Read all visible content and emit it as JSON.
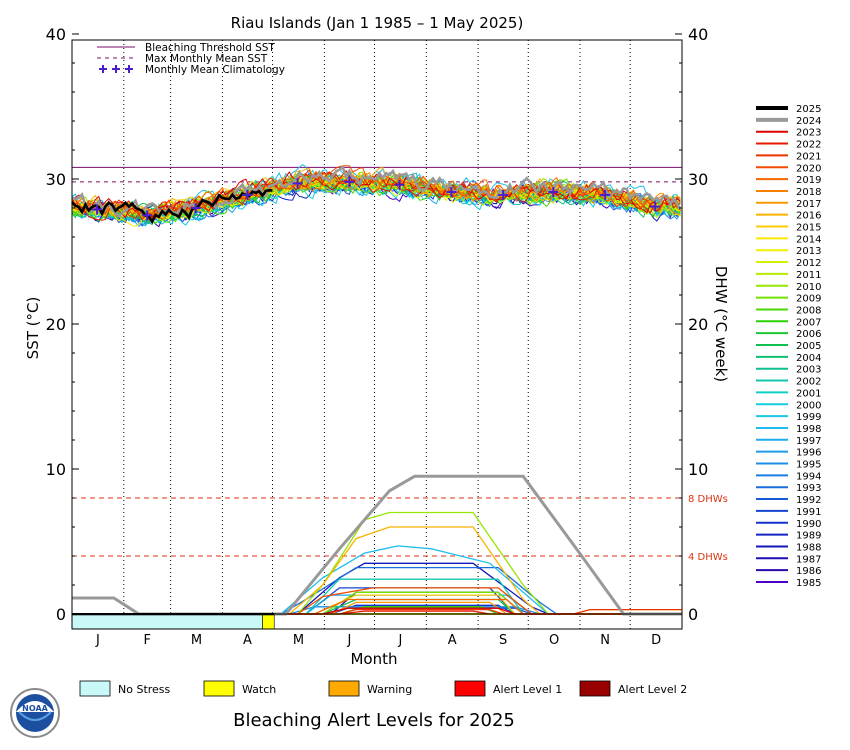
{
  "chart_data": {
    "type": "line",
    "title": "Riau Islands     (Jan 1 1985 – 1 May 2025)",
    "ylabel_left": "SST (°C)",
    "ylabel_right": "DHW (°C week)",
    "xlabel": "Month",
    "ylim": [
      -1,
      40
    ],
    "yticks_left": [
      "0",
      "10",
      "20",
      "30",
      "40"
    ],
    "yticks_right": [
      "0",
      "10",
      "20",
      "30",
      "40"
    ],
    "months": [
      "J",
      "F",
      "M",
      "A",
      "M",
      "J",
      "J",
      "A",
      "S",
      "O",
      "N",
      "D"
    ],
    "bleaching_threshold_sst": 30.8,
    "max_monthly_mean_sst": 29.8,
    "monthly_mean_climatology": [
      27.9,
      27.5,
      28.0,
      28.9,
      29.7,
      29.8,
      29.6,
      29.1,
      28.9,
      29.1,
      28.9,
      28.1
    ],
    "dhw_reference_lines": [
      {
        "value": 8,
        "label": "8 DHWs",
        "color": "#dd3311"
      },
      {
        "value": 4,
        "label": "4 DHWs",
        "color": "#dd3311"
      }
    ],
    "legend_top": [
      {
        "label": "Bleaching Threshold SST",
        "color": "#7a0d6e",
        "style": "solid"
      },
      {
        "label": "Max Monthly Mean SST",
        "color": "#7a0d6e",
        "style": "dashed"
      },
      {
        "label": "Monthly Mean Climatology",
        "color": "#4b1ecc",
        "style": "plus"
      }
    ],
    "years": [
      "2025",
      "2024",
      "2023",
      "2022",
      "2021",
      "2020",
      "2019",
      "2018",
      "2017",
      "2016",
      "2015",
      "2014",
      "2013",
      "2012",
      "2011",
      "2010",
      "2009",
      "2008",
      "2007",
      "2006",
      "2005",
      "2004",
      "2003",
      "2002",
      "2001",
      "2000",
      "1999",
      "1998",
      "1997",
      "1996",
      "1995",
      "1994",
      "1993",
      "1992",
      "1991",
      "1990",
      "1989",
      "1988",
      "1987",
      "1986",
      "1985"
    ],
    "year_colors": [
      "#000000",
      "#999999",
      "#dd0000",
      "#e61a00",
      "#ee3300",
      "#f24c00",
      "#f56600",
      "#f78000",
      "#f99900",
      "#fab300",
      "#fccc00",
      "#fde600",
      "#f0f000",
      "#d2f000",
      "#b4ec00",
      "#96e600",
      "#73e000",
      "#4bd800",
      "#28d000",
      "#1ac830",
      "#12c050",
      "#10c070",
      "#10c090",
      "#10c8ae",
      "#10d0c8",
      "#14d0dc",
      "#18c8e6",
      "#1cbcec",
      "#1eacee",
      "#1e9cea",
      "#1c8ce6",
      "#1a7ce0",
      "#186cdc",
      "#1658d6",
      "#1446d0",
      "#1234ca",
      "#1224c4",
      "#1216bc",
      "#1a0cb6",
      "#2a08ae",
      "#4a00c8"
    ],
    "year_series": [
      {
        "year": "2025",
        "sst_end_day": 121,
        "sst_offset": 0.0,
        "dhw": [
          [
            0,
            0
          ],
          [
            121,
            0
          ]
        ]
      },
      {
        "year": "2024",
        "sst_offset": 0.35,
        "dhw": [
          [
            0,
            1.1
          ],
          [
            25,
            1.1
          ],
          [
            40,
            0
          ],
          [
            128,
            0
          ],
          [
            160,
            4.5
          ],
          [
            190,
            8.5
          ],
          [
            205,
            9.5
          ],
          [
            270,
            9.5
          ],
          [
            305,
            4
          ],
          [
            330,
            0
          ],
          [
            365,
            0
          ]
        ]
      },
      {
        "year": "2023",
        "sst_offset": 0.3,
        "dhw": [
          [
            0,
            0
          ],
          [
            150,
            0
          ],
          [
            165,
            0.4
          ],
          [
            255,
            0.4
          ],
          [
            265,
            0
          ],
          [
            365,
            0
          ]
        ]
      },
      {
        "year": "2022",
        "sst_offset": 0.1,
        "dhw": [
          [
            0,
            0
          ],
          [
            160,
            0
          ],
          [
            175,
            0.2
          ],
          [
            240,
            0.2
          ],
          [
            250,
            0
          ],
          [
            365,
            0
          ]
        ]
      },
      {
        "year": "2021",
        "sst_offset": 0.2,
        "dhw": [
          [
            0,
            0
          ],
          [
            160,
            0
          ],
          [
            170,
            0.3
          ],
          [
            250,
            0.3
          ],
          [
            258,
            0
          ],
          [
            300,
            0
          ],
          [
            310,
            0.3
          ],
          [
            365,
            0.3
          ]
        ]
      },
      {
        "year": "2020",
        "sst_offset": 0.4,
        "dhw": [
          [
            0,
            0
          ],
          [
            135,
            0
          ],
          [
            150,
            1.2
          ],
          [
            180,
            1.8
          ],
          [
            255,
            1.8
          ],
          [
            275,
            0
          ],
          [
            365,
            0
          ]
        ]
      },
      {
        "year": "2019",
        "sst_offset": 0.25,
        "dhw": [
          [
            0,
            0
          ],
          [
            145,
            0
          ],
          [
            165,
            1.0
          ],
          [
            260,
            1.0
          ],
          [
            270,
            0
          ],
          [
            365,
            0
          ]
        ]
      },
      {
        "year": "2018",
        "sst_offset": 0.05,
        "dhw": [
          [
            0,
            0
          ],
          [
            365,
            0
          ]
        ]
      },
      {
        "year": "2017",
        "sst_offset": 0.1,
        "dhw": [
          [
            0,
            0
          ],
          [
            155,
            0
          ],
          [
            170,
            0.8
          ],
          [
            250,
            0.8
          ],
          [
            260,
            0
          ],
          [
            365,
            0
          ]
        ]
      },
      {
        "year": "2016",
        "sst_offset": 0.3,
        "dhw": [
          [
            0,
            0
          ],
          [
            130,
            0
          ],
          [
            150,
            2.0
          ],
          [
            170,
            5.2
          ],
          [
            190,
            6.0
          ],
          [
            240,
            6.0
          ],
          [
            270,
            1.0
          ],
          [
            280,
            0
          ],
          [
            365,
            0
          ]
        ]
      },
      {
        "year": "2015",
        "sst_offset": 0.15,
        "dhw": [
          [
            0,
            0
          ],
          [
            145,
            0
          ],
          [
            170,
            1.3
          ],
          [
            255,
            1.3
          ],
          [
            265,
            0
          ],
          [
            365,
            0
          ]
        ]
      },
      {
        "year": "2014",
        "sst_offset": 0.0,
        "dhw": [
          [
            0,
            0
          ],
          [
            300,
            0
          ],
          [
            310,
            0.3
          ],
          [
            365,
            0.3
          ]
        ]
      },
      {
        "year": "2013",
        "sst_offset": -0.05,
        "dhw": [
          [
            0,
            0
          ],
          [
            365,
            0
          ]
        ]
      },
      {
        "year": "2012",
        "sst_offset": -0.05,
        "dhw": [
          [
            0,
            0
          ],
          [
            365,
            0
          ]
        ]
      },
      {
        "year": "2011",
        "sst_offset": -0.1,
        "dhw": [
          [
            0,
            0
          ],
          [
            365,
            0
          ]
        ]
      },
      {
        "year": "2010",
        "sst_offset": 0.25,
        "dhw": [
          [
            0,
            0
          ],
          [
            135,
            0
          ],
          [
            150,
            2.0
          ],
          [
            175,
            6.5
          ],
          [
            190,
            7.0
          ],
          [
            240,
            7.0
          ],
          [
            270,
            2.0
          ],
          [
            285,
            0
          ],
          [
            365,
            0
          ]
        ]
      },
      {
        "year": "2009",
        "sst_offset": 0.05,
        "dhw": [
          [
            0,
            0
          ],
          [
            150,
            0
          ],
          [
            170,
            1.5
          ],
          [
            255,
            1.5
          ],
          [
            270,
            0
          ],
          [
            365,
            0
          ]
        ]
      },
      {
        "year": "2008",
        "sst_offset": -0.2,
        "dhw": [
          [
            0,
            0
          ],
          [
            365,
            0
          ]
        ]
      },
      {
        "year": "2007",
        "sst_offset": -0.05,
        "dhw": [
          [
            0,
            0
          ],
          [
            160,
            0
          ],
          [
            175,
            0.5
          ],
          [
            245,
            0.5
          ],
          [
            255,
            0
          ],
          [
            365,
            0
          ]
        ]
      },
      {
        "year": "2006",
        "sst_offset": -0.05,
        "dhw": [
          [
            0,
            0
          ],
          [
            365,
            0
          ]
        ]
      },
      {
        "year": "2005",
        "sst_offset": 0.1,
        "dhw": [
          [
            0,
            0
          ],
          [
            150,
            0
          ],
          [
            170,
            1.0
          ],
          [
            255,
            1.0
          ],
          [
            265,
            0
          ],
          [
            365,
            0
          ]
        ]
      },
      {
        "year": "2004",
        "sst_offset": -0.05,
        "dhw": [
          [
            0,
            0
          ],
          [
            365,
            0
          ]
        ]
      },
      {
        "year": "2003",
        "sst_offset": 0.0,
        "dhw": [
          [
            0,
            0
          ],
          [
            365,
            0
          ]
        ]
      },
      {
        "year": "2002",
        "sst_offset": 0.05,
        "dhw": [
          [
            0,
            0
          ],
          [
            140,
            0
          ],
          [
            160,
            2.4
          ],
          [
            255,
            2.4
          ],
          [
            270,
            0
          ],
          [
            365,
            0
          ]
        ]
      },
      {
        "year": "2001",
        "sst_offset": -0.1,
        "dhw": [
          [
            0,
            0
          ],
          [
            365,
            0
          ]
        ]
      },
      {
        "year": "2000",
        "sst_offset": -0.25,
        "dhw": [
          [
            0,
            0
          ],
          [
            365,
            0
          ]
        ]
      },
      {
        "year": "1999",
        "sst_offset": -0.3,
        "dhw": [
          [
            0,
            0
          ],
          [
            365,
            0
          ]
        ]
      },
      {
        "year": "1998",
        "sst_offset": 0.45,
        "dhw": [
          [
            0,
            0
          ],
          [
            125,
            0
          ],
          [
            150,
            2.5
          ],
          [
            175,
            4.2
          ],
          [
            195,
            4.7
          ],
          [
            215,
            4.5
          ],
          [
            250,
            3.5
          ],
          [
            285,
            0
          ],
          [
            365,
            0
          ]
        ]
      },
      {
        "year": "1997",
        "sst_offset": -0.1,
        "dhw": [
          [
            0,
            0
          ],
          [
            140,
            0
          ],
          [
            155,
            1.3
          ],
          [
            260,
            1.3
          ],
          [
            275,
            0
          ],
          [
            365,
            0
          ]
        ]
      },
      {
        "year": "1996",
        "sst_offset": -0.2,
        "dhw": [
          [
            0,
            0
          ],
          [
            365,
            0
          ]
        ]
      },
      {
        "year": "1995",
        "sst_offset": -0.15,
        "dhw": [
          [
            0,
            0
          ],
          [
            130,
            0
          ],
          [
            145,
            0.5
          ],
          [
            265,
            0.5
          ],
          [
            280,
            0
          ],
          [
            365,
            0
          ]
        ]
      },
      {
        "year": "1994",
        "sst_offset": -0.2,
        "dhw": [
          [
            0,
            0
          ],
          [
            365,
            0
          ]
        ]
      },
      {
        "year": "1993",
        "sst_offset": 0.0,
        "dhw": [
          [
            0,
            0
          ],
          [
            125,
            0
          ],
          [
            140,
            1.0
          ],
          [
            170,
            3.2
          ],
          [
            255,
            3.2
          ],
          [
            280,
            0.8
          ],
          [
            290,
            0
          ],
          [
            365,
            0
          ]
        ]
      },
      {
        "year": "1992",
        "sst_offset": -0.15,
        "dhw": [
          [
            0,
            0
          ],
          [
            150,
            0
          ],
          [
            165,
            0.4
          ],
          [
            265,
            0.4
          ],
          [
            275,
            0
          ],
          [
            365,
            0
          ]
        ]
      },
      {
        "year": "1991",
        "sst_offset": -0.1,
        "dhw": [
          [
            0,
            0
          ],
          [
            140,
            0
          ],
          [
            160,
            1.8
          ],
          [
            250,
            1.8
          ],
          [
            265,
            0
          ],
          [
            365,
            0
          ]
        ]
      },
      {
        "year": "1990",
        "sst_offset": -0.15,
        "dhw": [
          [
            0,
            0
          ],
          [
            155,
            0
          ],
          [
            170,
            0.6
          ],
          [
            255,
            0.6
          ],
          [
            265,
            0
          ],
          [
            365,
            0
          ]
        ]
      },
      {
        "year": "1989",
        "sst_offset": -0.2,
        "dhw": [
          [
            0,
            0
          ],
          [
            365,
            0
          ]
        ]
      },
      {
        "year": "1988",
        "sst_offset": 0.05,
        "dhw": [
          [
            0,
            0
          ],
          [
            135,
            0
          ],
          [
            160,
            2.5
          ],
          [
            175,
            3.5
          ],
          [
            240,
            3.5
          ],
          [
            275,
            0.5
          ],
          [
            285,
            0
          ],
          [
            365,
            0
          ]
        ]
      },
      {
        "year": "1987",
        "sst_offset": -0.05,
        "dhw": [
          [
            0,
            0
          ],
          [
            155,
            0
          ],
          [
            170,
            1.5
          ],
          [
            255,
            1.5
          ],
          [
            270,
            0
          ],
          [
            365,
            0
          ]
        ]
      },
      {
        "year": "1986",
        "sst_offset": -0.2,
        "dhw": [
          [
            0,
            0
          ],
          [
            365,
            0
          ]
        ]
      },
      {
        "year": "1985",
        "sst_offset": -0.3,
        "dhw": [
          [
            0,
            0
          ],
          [
            365,
            0
          ]
        ]
      }
    ],
    "alert_bar_2025": [
      {
        "from_day": 0,
        "to_day": 114,
        "level": "No Stress"
      },
      {
        "from_day": 114,
        "to_day": 121,
        "level": "Watch"
      }
    ],
    "grid": "dotted monthly verticals"
  },
  "legend_bottom": {
    "title": "Bleaching Alert Levels for 2025",
    "items": [
      {
        "label": "No Stress",
        "color": "#c8f8f8"
      },
      {
        "label": "Watch",
        "color": "#ffff00"
      },
      {
        "label": "Warning",
        "color": "#ffaa00"
      },
      {
        "label": "Alert Level 1",
        "color": "#ff0000"
      },
      {
        "label": "Alert Level 2",
        "color": "#990000"
      }
    ]
  },
  "logo": {
    "text": "NOAA"
  }
}
